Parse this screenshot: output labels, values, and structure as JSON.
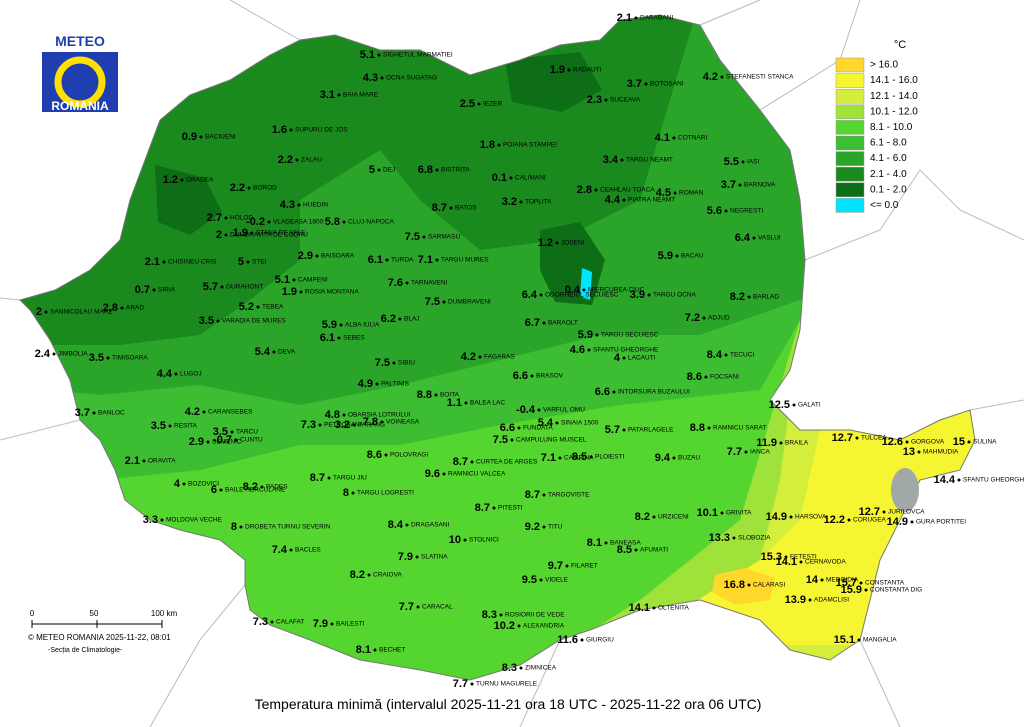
{
  "logo": {
    "top": "METEO",
    "bottom": "ROMANIA"
  },
  "legend": {
    "title": "°C",
    "items": [
      {
        "label": "> 16.0",
        "color": "#ffd82b"
      },
      {
        "label": "14.1 - 16.0",
        "color": "#f5f531"
      },
      {
        "label": "12.1 - 14.0",
        "color": "#d4ee3b"
      },
      {
        "label": "10.1 - 12.0",
        "color": "#9fe23a"
      },
      {
        "label": "8.1 - 10.0",
        "color": "#55d52f"
      },
      {
        "label": "6.1 - 8.0",
        "color": "#3cbd32"
      },
      {
        "label": "4.1 - 6.0",
        "color": "#2aa52a"
      },
      {
        "label": "2.1 - 4.0",
        "color": "#1a8a1e"
      },
      {
        "label": "0.1 - 2.0",
        "color": "#0d6e17"
      },
      {
        "label": "<= 0.0",
        "color": "#00e5ff"
      }
    ]
  },
  "scale": {
    "labels": [
      "0",
      "50",
      "100 km"
    ]
  },
  "credits": {
    "copyright": "© METEO ROMANIA 2025-11-22, 08:01",
    "department": "-Secția de Climatologie-"
  },
  "caption": "Temperatura minimă (intervalul 2025-11-21 ora 18 UTC - 2025-11-22 ora 06 UTC)",
  "stations": [
    {
      "name": "SIGHETUL MARMATIEI",
      "value": 5.1
    },
    {
      "name": "OCNA SUGATAG",
      "value": 4.3
    },
    {
      "name": "BAIA MARE",
      "value": 3.1
    },
    {
      "name": "SUPURU DE JOS",
      "value": 1.6
    },
    {
      "name": "BACIUENI",
      "value": 0.9
    },
    {
      "name": "ZALAU",
      "value": 2.2
    },
    {
      "name": "ORADEA",
      "value": 1.2
    },
    {
      "name": "BOROD",
      "value": 2.2
    },
    {
      "name": "HUEDIN",
      "value": 4.3
    },
    {
      "name": "VLADEASA 1800",
      "value": -0.2
    },
    {
      "name": "HOLOD",
      "value": 2.7
    },
    {
      "name": "CHISINEU CRIS",
      "value": 2.1
    },
    {
      "name": "DUMBRAVITA DE CODRU",
      "value": 2
    },
    {
      "name": "STANA DE VALE",
      "value": 1.9
    },
    {
      "name": "STEI",
      "value": 5
    },
    {
      "name": "CAMPENI",
      "value": 5.1
    },
    {
      "name": "ROSIA MONTANA",
      "value": 1.9
    },
    {
      "name": "BAISOARA",
      "value": 2.9
    },
    {
      "name": "CLUJ-NAPOCA",
      "value": 5.8
    },
    {
      "name": "DEJ",
      "value": 5
    },
    {
      "name": "BISTRITA",
      "value": 6.8
    },
    {
      "name": "IEZER",
      "value": 2.5
    },
    {
      "name": "RADAUTI",
      "value": 1.9
    },
    {
      "name": "DARABANI",
      "value": 2.1
    },
    {
      "name": "STEFANESTI STANCA",
      "value": 4.2
    },
    {
      "name": "BOTOSANI",
      "value": 3.7
    },
    {
      "name": "SUCEAVA",
      "value": 2.3
    },
    {
      "name": "POIANA STAMPEI",
      "value": 1.8
    },
    {
      "name": "COTNARI",
      "value": 4.1
    },
    {
      "name": "TARGU NEAMT",
      "value": 3.4
    },
    {
      "name": "IASI",
      "value": 5.5
    },
    {
      "name": "ROMAN",
      "value": 4.5
    },
    {
      "name": "PIATRA NEAMT",
      "value": 4.4
    },
    {
      "name": "BARNOVA",
      "value": 3.7
    },
    {
      "name": "NEGRESTI",
      "value": 5.6
    },
    {
      "name": "VASLUI",
      "value": 6.4
    },
    {
      "name": "BACAU",
      "value": 5.9
    },
    {
      "name": "CALIMANI",
      "value": 0.1
    },
    {
      "name": "TOPLITA",
      "value": 3.2
    },
    {
      "name": "CEAHLAU TOACA",
      "value": 2.8
    },
    {
      "name": "JOSENI",
      "value": 1.2
    },
    {
      "name": "MIERCUREA CIUC",
      "value": 0.4
    },
    {
      "name": "TARGU OCNA",
      "value": 3.9
    },
    {
      "name": "BARLAD",
      "value": 8.2
    },
    {
      "name": "ADJUD",
      "value": 7.2
    },
    {
      "name": "ODORHEIUL SECUIESC",
      "value": 6.4
    },
    {
      "name": "BARAOLT",
      "value": 6.7
    },
    {
      "name": "TARGU SECUIESC",
      "value": 5.9
    },
    {
      "name": "SFANTU GHEORGHE",
      "value": 4.6
    },
    {
      "name": "BRASOV",
      "value": 6.6
    },
    {
      "name": "LACAUTI",
      "value": 4
    },
    {
      "name": "INTORSURA BUZAULUI",
      "value": 6.6
    },
    {
      "name": "TECUCI",
      "value": 8.4
    },
    {
      "name": "FOCSANI",
      "value": 8.6
    },
    {
      "name": "GALATI",
      "value": 12.5
    },
    {
      "name": "BRAILA",
      "value": 11.9
    },
    {
      "name": "TULCEA",
      "value": 12.7
    },
    {
      "name": "GORGOVA",
      "value": 12.6
    },
    {
      "name": "MAHMUDIA",
      "value": 13
    },
    {
      "name": "SULINA",
      "value": 15
    },
    {
      "name": "SFANTU GHEORGHE",
      "value": 14.4
    },
    {
      "name": "JURILOVCA",
      "value": 12.7
    },
    {
      "name": "GURA PORTITEI",
      "value": 14.9
    },
    {
      "name": "CORUGEA",
      "value": 12.2
    },
    {
      "name": "HARSOVA",
      "value": 14.9
    },
    {
      "name": "CERNAVODA",
      "value": 14.1
    },
    {
      "name": "FETESTI",
      "value": 15.3
    },
    {
      "name": "MEDGIDIA",
      "value": 14
    },
    {
      "name": "CONSTANTA",
      "value": 15.7
    },
    {
      "name": "CONSTANTA DIG",
      "value": 15.9
    },
    {
      "name": "ADAMCLISI",
      "value": 13.9
    },
    {
      "name": "MANGALIA",
      "value": 15.1
    },
    {
      "name": "CALARASI",
      "value": 16.8
    },
    {
      "name": "OLTENITA",
      "value": 14.1
    },
    {
      "name": "GIURGIU",
      "value": 11.6
    },
    {
      "name": "SLOBOZIA",
      "value": 13.3
    },
    {
      "name": "GRIVITA",
      "value": 10.1
    },
    {
      "name": "URZICENI",
      "value": 8.2
    },
    {
      "name": "IANCA",
      "value": 7.7
    },
    {
      "name": "BUZAU",
      "value": 9.4
    },
    {
      "name": "PATARLAGELE",
      "value": 5.7
    },
    {
      "name": "RAMNICU SARAT",
      "value": 8.8
    },
    {
      "name": "PLOIESTI",
      "value": 8.5
    },
    {
      "name": "CAMPINA",
      "value": 7.1
    },
    {
      "name": "SINAIA 1500",
      "value": 5.4
    },
    {
      "name": "VARFUL OMU",
      "value": -0.4
    },
    {
      "name": "FUNDATA",
      "value": 6.6
    },
    {
      "name": "CAMPULUNG MUSCEL",
      "value": 7.5
    },
    {
      "name": "CURTEA DE ARGES",
      "value": 8.7
    },
    {
      "name": "BALEA LAC",
      "value": 1.1
    },
    {
      "name": "BOITA",
      "value": 8.8
    },
    {
      "name": "PALTINIS",
      "value": 4.9
    },
    {
      "name": "SIBIU",
      "value": 7.5
    },
    {
      "name": "FAGARAS",
      "value": 4.2
    },
    {
      "name": "VOINEASA",
      "value": 7.8
    },
    {
      "name": "OBARSIA LOTRULUI",
      "value": 4.8
    },
    {
      "name": "PARANG",
      "value": 3.2
    },
    {
      "name": "PETROSANI",
      "value": 7.3
    },
    {
      "name": "RAMNICU VALCEA",
      "value": 9.6
    },
    {
      "name": "DRAGASANI",
      "value": 8.4
    },
    {
      "name": "PITESTI",
      "value": 8.7
    },
    {
      "name": "TARGOVISTE",
      "value": 8.7
    },
    {
      "name": "TITU",
      "value": 9.2
    },
    {
      "name": "AFUMATI",
      "value": 8.5
    },
    {
      "name": "BANEASA",
      "value": 8.1
    },
    {
      "name": "FILARET",
      "value": 9.7
    },
    {
      "name": "VIDELE",
      "value": 9.5
    },
    {
      "name": "ALEXANDRIA",
      "value": 10.2
    },
    {
      "name": "ROSIORII DE VEDE",
      "value": 8.3
    },
    {
      "name": "ZIMNICEA",
      "value": 8.3
    },
    {
      "name": "TURNU MAGURELE",
      "value": 7.7
    },
    {
      "name": "STOLNICI",
      "value": 10
    },
    {
      "name": "SLATINA",
      "value": 7.9
    },
    {
      "name": "CARACAL",
      "value": 7.7
    },
    {
      "name": "CRAIOVA",
      "value": 8.2
    },
    {
      "name": "BAILESTI",
      "value": 7.9
    },
    {
      "name": "CALAFAT",
      "value": 7.3
    },
    {
      "name": "BECHET",
      "value": 8.1
    },
    {
      "name": "BACLES",
      "value": 7.4
    },
    {
      "name": "DROBETA TURNU SEVERIN",
      "value": 8
    },
    {
      "name": "TARGU LOGRESTI",
      "value": 8
    },
    {
      "name": "POLOVRAGI",
      "value": 8.6
    },
    {
      "name": "TARGU JIU",
      "value": 8.7
    },
    {
      "name": "PADES",
      "value": 8.2
    },
    {
      "name": "BAILE HERCULANE",
      "value": 6
    },
    {
      "name": "BOZOVICI",
      "value": 4
    },
    {
      "name": "MOLDOVA VECHE",
      "value": 3.3
    },
    {
      "name": "ORAVITA",
      "value": 2.1
    },
    {
      "name": "SEMENIC",
      "value": 2.9
    },
    {
      "name": "CUNTU",
      "value": -0.7
    },
    {
      "name": "CARANSEBES",
      "value": 4.2
    },
    {
      "name": "TARCU",
      "value": 3.5
    },
    {
      "name": "RESITA",
      "value": 3.5
    },
    {
      "name": "BANLOC",
      "value": 3.7
    },
    {
      "name": "LUGOJ",
      "value": 4.4
    },
    {
      "name": "JIMBOLIA",
      "value": 2.4
    },
    {
      "name": "TIMISOARA",
      "value": 3.5
    },
    {
      "name": "DEVA",
      "value": 5.4
    },
    {
      "name": "SANNICOLAU MARE",
      "value": 2
    },
    {
      "name": "ARAD",
      "value": 2.8
    },
    {
      "name": "SIRIA",
      "value": 0.7
    },
    {
      "name": "GURAHONT",
      "value": 5.7
    },
    {
      "name": "VARADIA DE MURES",
      "value": 3.5
    },
    {
      "name": "TEBEA",
      "value": 5.2
    },
    {
      "name": "ALBA IULIA",
      "value": 5.9
    },
    {
      "name": "SEBES",
      "value": 6.1
    },
    {
      "name": "BLAJ",
      "value": 6.2
    },
    {
      "name": "TURDA",
      "value": 6.1
    },
    {
      "name": "SARMASU",
      "value": 7.5
    },
    {
      "name": "TARGU MURES",
      "value": 7.1
    },
    {
      "name": "BATOS",
      "value": 8.7
    },
    {
      "name": "TARNAVENI",
      "value": 7.6
    },
    {
      "name": "DUMBRAVENI",
      "value": 7.5
    }
  ]
}
